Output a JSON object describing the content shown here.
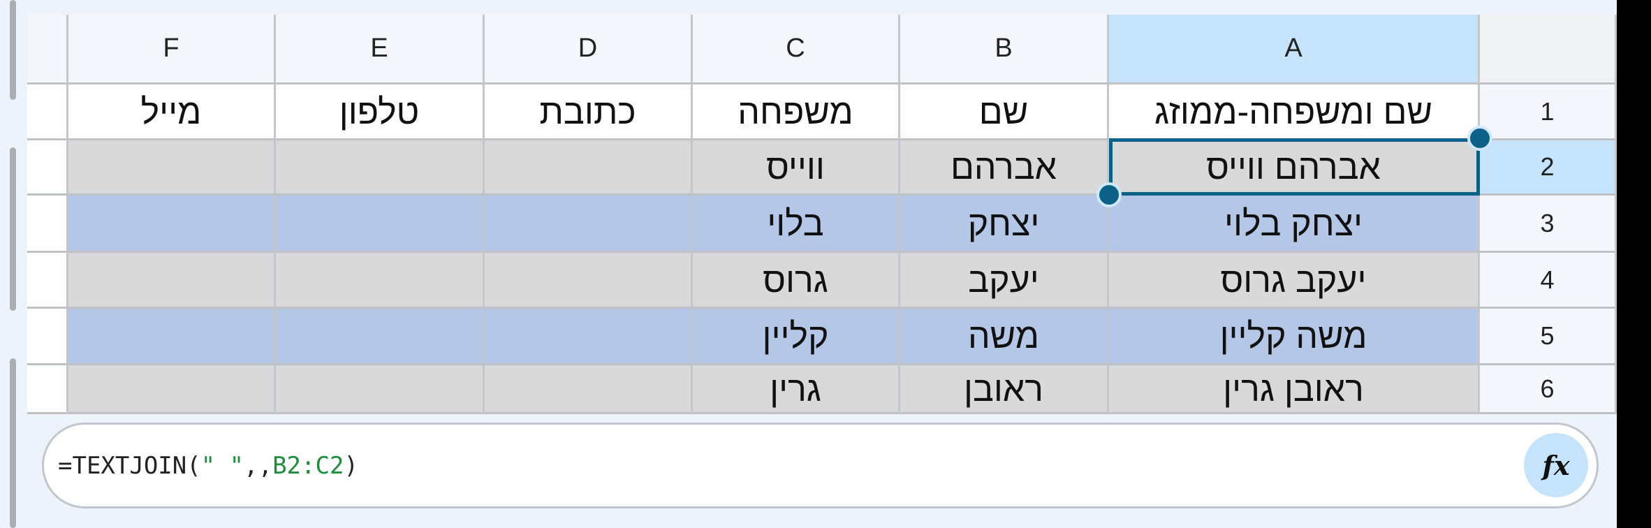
{
  "columns": [
    "F",
    "E",
    "D",
    "C",
    "B",
    "A"
  ],
  "rows": [
    {
      "num": "1",
      "cells": [
        "מייל",
        "טלפון",
        "כתובת",
        "משפחה",
        "שם",
        "שם ומשפחה-ממוזג"
      ]
    },
    {
      "num": "2",
      "cells": [
        "",
        "",
        "",
        "ווייס",
        "אברהם",
        "אברהם ווייס"
      ]
    },
    {
      "num": "3",
      "cells": [
        "",
        "",
        "",
        "בלוי",
        "יצחק",
        "יצחק בלוי"
      ]
    },
    {
      "num": "4",
      "cells": [
        "",
        "",
        "",
        "גרוס",
        "יעקב",
        "יעקב גרוס"
      ]
    },
    {
      "num": "5",
      "cells": [
        "",
        "",
        "",
        "קליין",
        "משה",
        "משה קליין"
      ]
    },
    {
      "num": "6",
      "cells": [
        "",
        "",
        "",
        "גרין",
        "ראובן",
        "ראובן גרין"
      ]
    }
  ],
  "selected_cell": "A2",
  "formula_bar": {
    "prefix": "=TEXTJOIN(",
    "arg1": "\" \"",
    "mid": ",,",
    "range": "B2:C2",
    "suffix": ")",
    "fx_label": "fx"
  },
  "colors": {
    "selection": "#0b6187",
    "band_gray": "#d9d9d9",
    "band_blue": "#b4c7e7",
    "header_selected": "#c5e3fb",
    "function_arg": "#1e8e3e"
  }
}
